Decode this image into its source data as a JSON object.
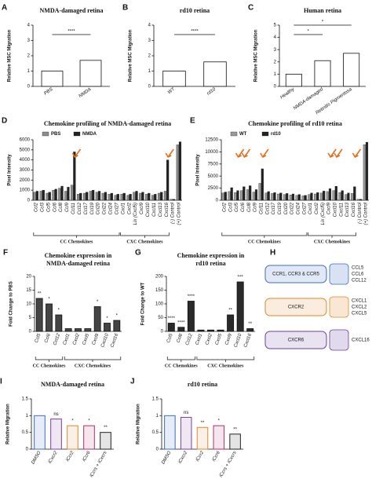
{
  "chart_data": [
    {
      "type": "bar",
      "panel": "A",
      "title": "NMDA-damaged retina",
      "ylabel": "Relative MSC Migration",
      "categories": [
        "PBS",
        "NMDA"
      ],
      "values": [
        1.0,
        1.7
      ],
      "color": "#ffffff",
      "ylim": [
        0,
        4
      ],
      "yticks": [
        0,
        1,
        2,
        3,
        4
      ],
      "comparisons": [
        "****"
      ]
    },
    {
      "type": "bar",
      "panel": "B",
      "title": "rd10 retina",
      "ylabel": "Relative MSC Migration",
      "categories": [
        "WT",
        "rd10"
      ],
      "values": [
        1.0,
        1.6
      ],
      "color": "#ffffff",
      "ylim": [
        0,
        4
      ],
      "yticks": [
        0,
        1,
        2,
        3,
        4
      ],
      "comparisons": [
        "****"
      ]
    },
    {
      "type": "bar",
      "panel": "C",
      "title": "Human retina",
      "ylabel": "Relative MSC Migration",
      "categories": [
        "Healthy",
        "NMDA-damaged",
        "Retinitis Pigmentosa"
      ],
      "values": [
        1.0,
        2.1,
        2.7
      ],
      "color": "#ffffff",
      "ylim": [
        0,
        5
      ],
      "yticks": [
        0,
        1,
        2,
        3,
        4,
        5
      ],
      "comparisons": [
        "*",
        "*"
      ]
    },
    {
      "type": "bar",
      "panel": "D",
      "title": "Chemokine profiling of NMDA-damaged retina",
      "ylabel": "Pixel Intensity",
      "categories": [
        "Ccl2",
        "Ccl3",
        "Ccl5",
        "Ccl6",
        "Ccl8",
        "Ccl9",
        "Ccl11",
        "Ccl12",
        "Ccl17",
        "Ccl19",
        "Ccl20",
        "Ccl22",
        "Ccl24",
        "Ccl27",
        "Cxcl1",
        "Cxcl2",
        "Lix (Cxcl5)",
        "Cxcl9",
        "Cxcl10",
        "Cxcl11",
        "Cxcl13",
        "Cxcl16",
        "(-) Control",
        "(+) Control"
      ],
      "series": [
        {
          "name": "PBS",
          "color": "#8c8c8c",
          "values": [
            800,
            900,
            700,
            1000,
            1200,
            900,
            1500,
            600,
            700,
            900,
            800,
            700,
            600,
            500,
            600,
            500,
            800,
            700,
            600,
            500,
            700,
            900,
            100,
            5500
          ]
        },
        {
          "name": "NMDA",
          "color": "#222222",
          "values": [
            900,
            1000,
            800,
            1100,
            1400,
            1300,
            4800,
            700,
            800,
            1000,
            900,
            800,
            700,
            600,
            700,
            600,
            900,
            800,
            700,
            600,
            800,
            4000,
            100,
            5800
          ]
        }
      ],
      "ylim": [
        0,
        6000
      ],
      "yticks": [
        0,
        1000,
        2000,
        3000,
        4000,
        5000,
        6000
      ],
      "groups": [
        "CC Chemokines",
        "CXC Chemokines"
      ]
    },
    {
      "type": "bar",
      "panel": "E",
      "title": "Chemokine profiling of rd10 retina",
      "ylabel": "Pixel Intensity",
      "categories": [
        "Ccl2",
        "Ccl3",
        "Ccl5",
        "Ccl6",
        "Ccl8",
        "Ccl9",
        "Ccl11",
        "Ccl12",
        "Ccl17",
        "Ccl19",
        "Ccl20",
        "Ccl22",
        "Ccl24",
        "Ccl27",
        "Cxcl1",
        "Cxcl2",
        "Lix (Cxcl5)",
        "Cxcl9",
        "Cxcl10",
        "Cxcl11",
        "Cxcl13",
        "Cxcl16",
        "(-) Control",
        "(+) Control"
      ],
      "series": [
        {
          "name": "WT",
          "color": "#9a9a9a",
          "values": [
            1500,
            1800,
            1600,
            2000,
            2200,
            1700,
            3500,
            1500,
            1400,
            1300,
            1200,
            1100,
            1000,
            900,
            1200,
            1300,
            1500,
            1800,
            2000,
            1600,
            1200,
            1400,
            200,
            11500
          ]
        },
        {
          "name": "rd10",
          "color": "#222222",
          "values": [
            1700,
            2600,
            2000,
            2800,
            3000,
            2200,
            6500,
            1800,
            1600,
            1500,
            1400,
            1300,
            1200,
            1000,
            1500,
            1600,
            1900,
            2400,
            2900,
            2000,
            1500,
            2800,
            200,
            12000
          ]
        }
      ],
      "ylim": [
        0,
        12500
      ],
      "yticks": [
        0,
        2500,
        5000,
        7500,
        10000,
        12500
      ],
      "groups": [
        "CC Chemokines",
        "CXC Chemokines"
      ]
    },
    {
      "type": "bar",
      "panel": "F",
      "title": [
        "Chemokine expression in",
        "NMDA-damaged retina"
      ],
      "ylabel": "Fold Change to PBS",
      "categories": [
        "Ccl5",
        "Ccl6",
        "Ccl12",
        "Cxcl1",
        "Cxcl2",
        "Cxcl5",
        "Cxcl9",
        "Cxcl10",
        "Cxcl16"
      ],
      "values": [
        12,
        10,
        6,
        1,
        1,
        1,
        9,
        3,
        4
      ],
      "color": "#444444",
      "ylim": [
        0,
        20
      ],
      "yticks": [
        0,
        5,
        10,
        15,
        20
      ],
      "sig": [
        "**",
        "*",
        "*",
        null,
        null,
        null,
        "*",
        "*",
        "*"
      ],
      "groups": [
        "CC Chemokines",
        "CXC Chemokines"
      ]
    },
    {
      "type": "bar",
      "panel": "G",
      "title": [
        "Chemokine expression in",
        "rd10 retina"
      ],
      "ylabel": "Fold Change to WT",
      "categories": [
        "Ccl5",
        "Ccl6",
        "Ccl12",
        "Cxcl1",
        "Cxcl2",
        "Cxcl5",
        "Cxcl9",
        "Cxcl10",
        "Cxcl16"
      ],
      "values": [
        30,
        15,
        110,
        5,
        5,
        5,
        60,
        180,
        10
      ],
      "color": "#2a2a2a",
      "ylim": [
        0,
        200
      ],
      "yticks": [
        0,
        50,
        100,
        150,
        200
      ],
      "sig": [
        "****",
        "****",
        "****",
        null,
        null,
        null,
        "**",
        "***",
        "**"
      ],
      "groups": [
        "CC Chemokines",
        "CXC Chemokines"
      ]
    },
    {
      "type": "bar",
      "panel": "I",
      "title": "NMDA-damaged retina",
      "ylabel": "Relative Migration",
      "categories": [
        "DMSO",
        "iCxcr2",
        "iCcr2",
        "iCcr6",
        "iCcrs + iCxcrs"
      ],
      "values": [
        1.0,
        0.9,
        0.7,
        0.7,
        0.5
      ],
      "colors": [
        "#3b6cc4",
        "#7b3fa0",
        "#e0862a",
        "#b0306a",
        "#222222"
      ],
      "ylim": [
        0,
        1.5
      ],
      "yticks": [
        0,
        0.5,
        1,
        1.5
      ],
      "sig": [
        null,
        "ns",
        "*",
        "*",
        "**"
      ]
    },
    {
      "type": "bar",
      "panel": "J",
      "title": "rd10 retina",
      "ylabel": "Relative Migration",
      "categories": [
        "DMSO",
        "iCxcr2",
        "iCcr2",
        "iCcr6",
        "iCcrs + iCxcrs"
      ],
      "values": [
        1.0,
        0.95,
        0.65,
        0.7,
        0.45
      ],
      "colors": [
        "#3b6cc4",
        "#7b3fa0",
        "#e0862a",
        "#b0306a",
        "#222222"
      ],
      "ylim": [
        0,
        1.5
      ],
      "yticks": [
        0,
        0.5,
        1,
        1.5
      ],
      "sig": [
        null,
        "ns",
        "**",
        "*",
        "**"
      ]
    }
  ],
  "diagram": {
    "panel": "H",
    "receptors": [
      {
        "label": "CCR1, CCR3 & CCR5",
        "color": "#3b6cc4",
        "ligands": [
          "CCL5",
          "CCL6",
          "CCL12"
        ]
      },
      {
        "label": "CXCR2",
        "color": "#e0862a",
        "ligands": [
          "CXCL1",
          "CXCL2",
          "CXCL5"
        ]
      },
      {
        "label": "CXCR6",
        "color": "#6a3fa0",
        "ligands": [
          "CXCL16"
        ]
      }
    ]
  }
}
